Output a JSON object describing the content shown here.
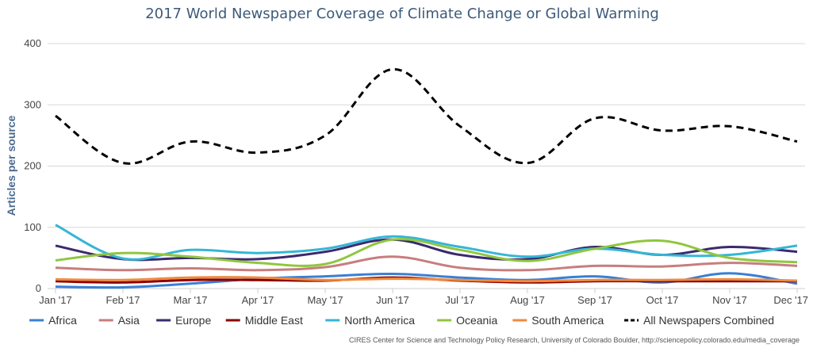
{
  "chart_data": {
    "type": "line",
    "title": "2017 World Newspaper Coverage of Climate Change or Global Warming",
    "ylabel": "Articles per source",
    "xlabel": "",
    "ylim": [
      0,
      400
    ],
    "yticks": [
      0,
      100,
      200,
      300,
      400
    ],
    "grid": true,
    "legend": "bottom",
    "categories": [
      "Jan '17",
      "Feb '17",
      "Mar '17",
      "Apr '17",
      "May '17",
      "Jun '17",
      "Jul '17",
      "Aug '17",
      "Sep '17",
      "Oct '17",
      "Nov '17",
      "Dec '17"
    ],
    "series": [
      {
        "name": "Africa",
        "color": "#3a7fd5",
        "dashed": false,
        "values": [
          3,
          2,
          8,
          16,
          20,
          24,
          18,
          14,
          20,
          10,
          25,
          8
        ]
      },
      {
        "name": "Asia",
        "color": "#c77e7e",
        "dashed": false,
        "values": [
          34,
          30,
          33,
          30,
          35,
          52,
          34,
          30,
          37,
          36,
          42,
          37
        ]
      },
      {
        "name": "Europe",
        "color": "#3b2a6e",
        "dashed": false,
        "values": [
          70,
          48,
          50,
          48,
          60,
          80,
          55,
          48,
          68,
          55,
          68,
          60
        ]
      },
      {
        "name": "Middle East",
        "color": "#8b0000",
        "dashed": false,
        "values": [
          12,
          10,
          14,
          14,
          13,
          18,
          13,
          10,
          12,
          12,
          12,
          12
        ]
      },
      {
        "name": "North America",
        "color": "#35b6d6",
        "dashed": false,
        "values": [
          104,
          49,
          63,
          58,
          65,
          85,
          68,
          52,
          65,
          55,
          55,
          70
        ]
      },
      {
        "name": "Oceania",
        "color": "#8fc63f",
        "dashed": false,
        "values": [
          46,
          58,
          52,
          42,
          40,
          80,
          63,
          45,
          65,
          78,
          50,
          43
        ]
      },
      {
        "name": "South America",
        "color": "#f08a3e",
        "dashed": false,
        "values": [
          15,
          14,
          18,
          18,
          14,
          16,
          14,
          12,
          14,
          14,
          15,
          13
        ]
      },
      {
        "name": "All Newspapers Combined",
        "color": "#000000",
        "dashed": true,
        "values": [
          282,
          205,
          240,
          222,
          250,
          358,
          265,
          205,
          278,
          258,
          265,
          240
        ]
      }
    ],
    "credit": "CIRES Center for Science and Technology Policy Research, University of Colorado Boulder, http://sciencepolicy.colorado.edu/media_coverage"
  }
}
